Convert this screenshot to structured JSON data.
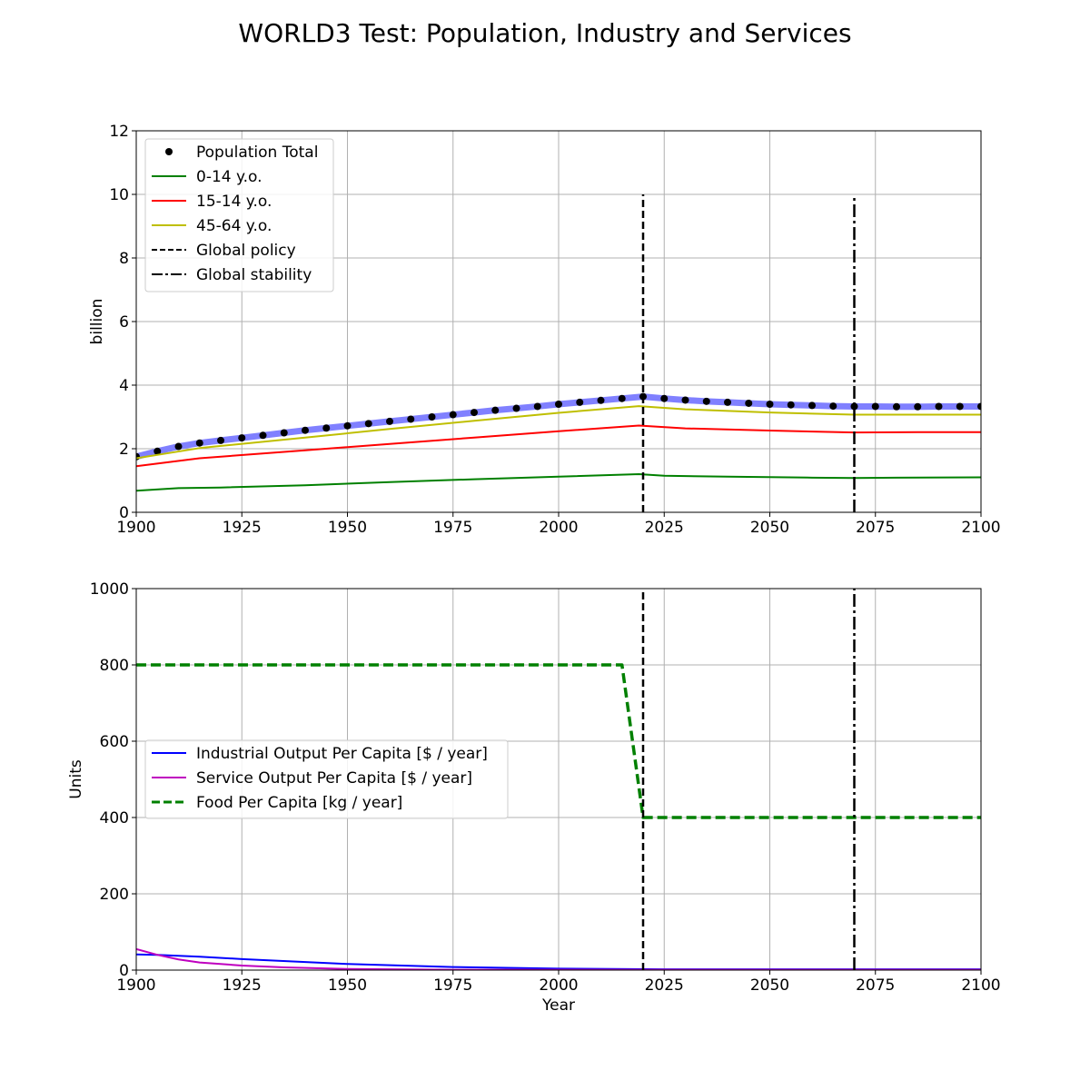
{
  "figure": {
    "title": "WORLD3 Test: Population, Industry and Services"
  },
  "chart_data": [
    {
      "type": "line",
      "xlabel": "",
      "ylabel": "billion",
      "xlim": [
        1900,
        2100
      ],
      "ylim": [
        0,
        12
      ],
      "xticks": [
        1900,
        1925,
        1950,
        1975,
        2000,
        2025,
        2050,
        2075,
        2100
      ],
      "yticks": [
        0,
        2,
        4,
        6,
        8,
        10,
        12
      ],
      "grid": true,
      "legend": "top-left",
      "series": [
        {
          "name": "Population Total",
          "style": "dots-on-band",
          "color": "#000000",
          "band_color": "#8080ff",
          "x": [
            1900,
            1905,
            1910,
            1915,
            1920,
            1925,
            1930,
            1935,
            1940,
            1945,
            1950,
            1955,
            1960,
            1965,
            1970,
            1975,
            1980,
            1985,
            1990,
            1995,
            2000,
            2005,
            2010,
            2015,
            2020,
            2025,
            2030,
            2035,
            2040,
            2045,
            2050,
            2055,
            2060,
            2065,
            2070,
            2075,
            2080,
            2085,
            2090,
            2095,
            2100
          ],
          "y": [
            1.75,
            1.92,
            2.07,
            2.18,
            2.26,
            2.34,
            2.42,
            2.5,
            2.58,
            2.65,
            2.72,
            2.79,
            2.86,
            2.93,
            3.0,
            3.07,
            3.14,
            3.21,
            3.27,
            3.33,
            3.4,
            3.46,
            3.52,
            3.58,
            3.64,
            3.58,
            3.53,
            3.49,
            3.46,
            3.43,
            3.4,
            3.38,
            3.36,
            3.34,
            3.33,
            3.33,
            3.32,
            3.32,
            3.33,
            3.33,
            3.33
          ]
        },
        {
          "name": "0-14 y.o.",
          "style": "solid",
          "color": "#008000",
          "x": [
            1900,
            1910,
            1920,
            1940,
            1960,
            1980,
            2000,
            2019,
            2025,
            2040,
            2060,
            2070,
            2080,
            2100
          ],
          "y": [
            0.68,
            0.76,
            0.78,
            0.85,
            0.95,
            1.04,
            1.12,
            1.2,
            1.15,
            1.12,
            1.09,
            1.08,
            1.09,
            1.1
          ]
        },
        {
          "name": "15-14 y.o.",
          "style": "solid",
          "color": "#ff0000",
          "x": [
            1900,
            1915,
            1940,
            1960,
            1980,
            2000,
            2019,
            2030,
            2050,
            2070,
            2085,
            2100
          ],
          "y": [
            1.45,
            1.7,
            1.95,
            2.15,
            2.35,
            2.55,
            2.73,
            2.64,
            2.57,
            2.51,
            2.52,
            2.52
          ]
        },
        {
          "name": "45-64 y.o.",
          "style": "solid",
          "color": "#bfbf00",
          "x": [
            1900,
            1915,
            1940,
            1960,
            1980,
            2000,
            2019,
            2030,
            2050,
            2070,
            2085,
            2100
          ],
          "y": [
            1.7,
            2.02,
            2.35,
            2.62,
            2.88,
            3.13,
            3.34,
            3.24,
            3.14,
            3.07,
            3.07,
            3.07
          ]
        },
        {
          "name": "Global policy",
          "style": "vline-dashed",
          "color": "#000000",
          "x": [
            2020,
            2020
          ],
          "y": [
            0,
            10
          ]
        },
        {
          "name": "Global stability",
          "style": "vline-dashdot",
          "color": "#000000",
          "x": [
            2070,
            2070
          ],
          "y": [
            0,
            10
          ]
        }
      ]
    },
    {
      "type": "line",
      "xlabel": "Year",
      "ylabel": "Units",
      "xlim": [
        1900,
        2100
      ],
      "ylim": [
        0,
        1000
      ],
      "xticks": [
        1900,
        1925,
        1950,
        1975,
        2000,
        2025,
        2050,
        2075,
        2100
      ],
      "yticks": [
        0,
        200,
        400,
        600,
        800,
        1000
      ],
      "grid": true,
      "legend": "center-left",
      "series": [
        {
          "name": "Industrial Output Per Capita [$ / year]",
          "style": "solid",
          "color": "#0000ff",
          "x": [
            1900,
            1905,
            1915,
            1925,
            1950,
            1975,
            2000,
            2025,
            2050,
            2075,
            2100
          ],
          "y": [
            41,
            40,
            35,
            29,
            16,
            8,
            4,
            2,
            2,
            2,
            2
          ]
        },
        {
          "name": "Service Output Per Capita [$ / year]",
          "style": "solid",
          "color": "#bf00bf",
          "x": [
            1900,
            1905,
            1910,
            1915,
            1925,
            1935,
            1950,
            1975,
            2000,
            2025,
            2050,
            2075,
            2100
          ],
          "y": [
            55,
            40,
            28,
            20,
            12,
            7,
            3,
            1,
            1,
            1,
            1,
            1,
            1
          ]
        },
        {
          "name": "Food Per Capita [kg / year]",
          "style": "dashed-thick",
          "color": "#008000",
          "x": [
            1900,
            2015,
            2020,
            2100
          ],
          "y": [
            800,
            800,
            400,
            400
          ]
        },
        {
          "name": "",
          "style": "vline-dashed",
          "color": "#000000",
          "x": [
            2020,
            2020
          ],
          "y": [
            0,
            1000
          ]
        },
        {
          "name": "",
          "style": "vline-dashdot",
          "color": "#000000",
          "x": [
            2070,
            2070
          ],
          "y": [
            0,
            1000
          ]
        }
      ]
    }
  ]
}
